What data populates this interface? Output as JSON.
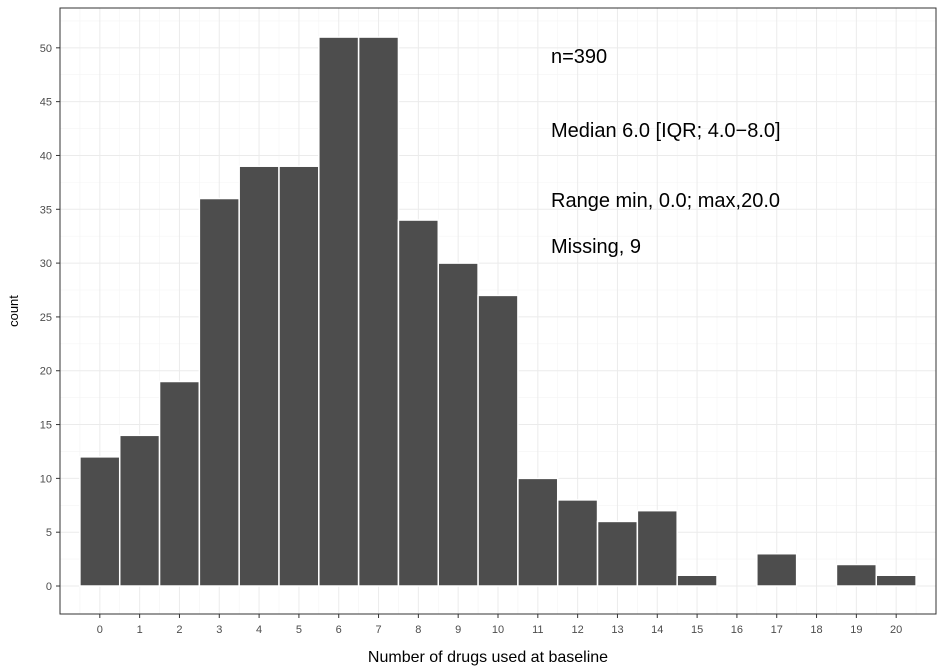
{
  "chart_data": {
    "type": "bar",
    "xlabel": "Number of drugs used at baseline",
    "ylabel": "count",
    "categories": [
      0,
      1,
      2,
      3,
      4,
      5,
      6,
      7,
      8,
      9,
      10,
      11,
      12,
      13,
      14,
      15,
      16,
      17,
      18,
      19,
      20
    ],
    "values": [
      12,
      14,
      19,
      36,
      39,
      39,
      51,
      51,
      34,
      30,
      27,
      10,
      8,
      6,
      7,
      1,
      0,
      3,
      0,
      2,
      1
    ],
    "xticks": [
      "0",
      "1",
      "2",
      "3",
      "4",
      "5",
      "6",
      "7",
      "8",
      "9",
      "10",
      "11",
      "12",
      "13",
      "14",
      "15",
      "16",
      "17",
      "18",
      "19",
      "20"
    ],
    "yticks": [
      "0",
      "5",
      "10",
      "15",
      "20",
      "25",
      "30",
      "35",
      "40",
      "45",
      "50"
    ],
    "ylim": [
      -2.6,
      53.7
    ],
    "xlim": [
      -1,
      21
    ],
    "grid": true,
    "annotations": [
      "n=390",
      "Median 6.0 [IQR; 4.0−8.0]",
      "Range min, 0.0; max,20.0",
      "Missing, 9"
    ],
    "colors": {
      "bar_fill": "#4d4d4d",
      "bar_edge": "#ffffff",
      "grid_major": "#ebebeb",
      "grid_minor": "#f4f4f4",
      "panel_border": "#333333"
    }
  }
}
